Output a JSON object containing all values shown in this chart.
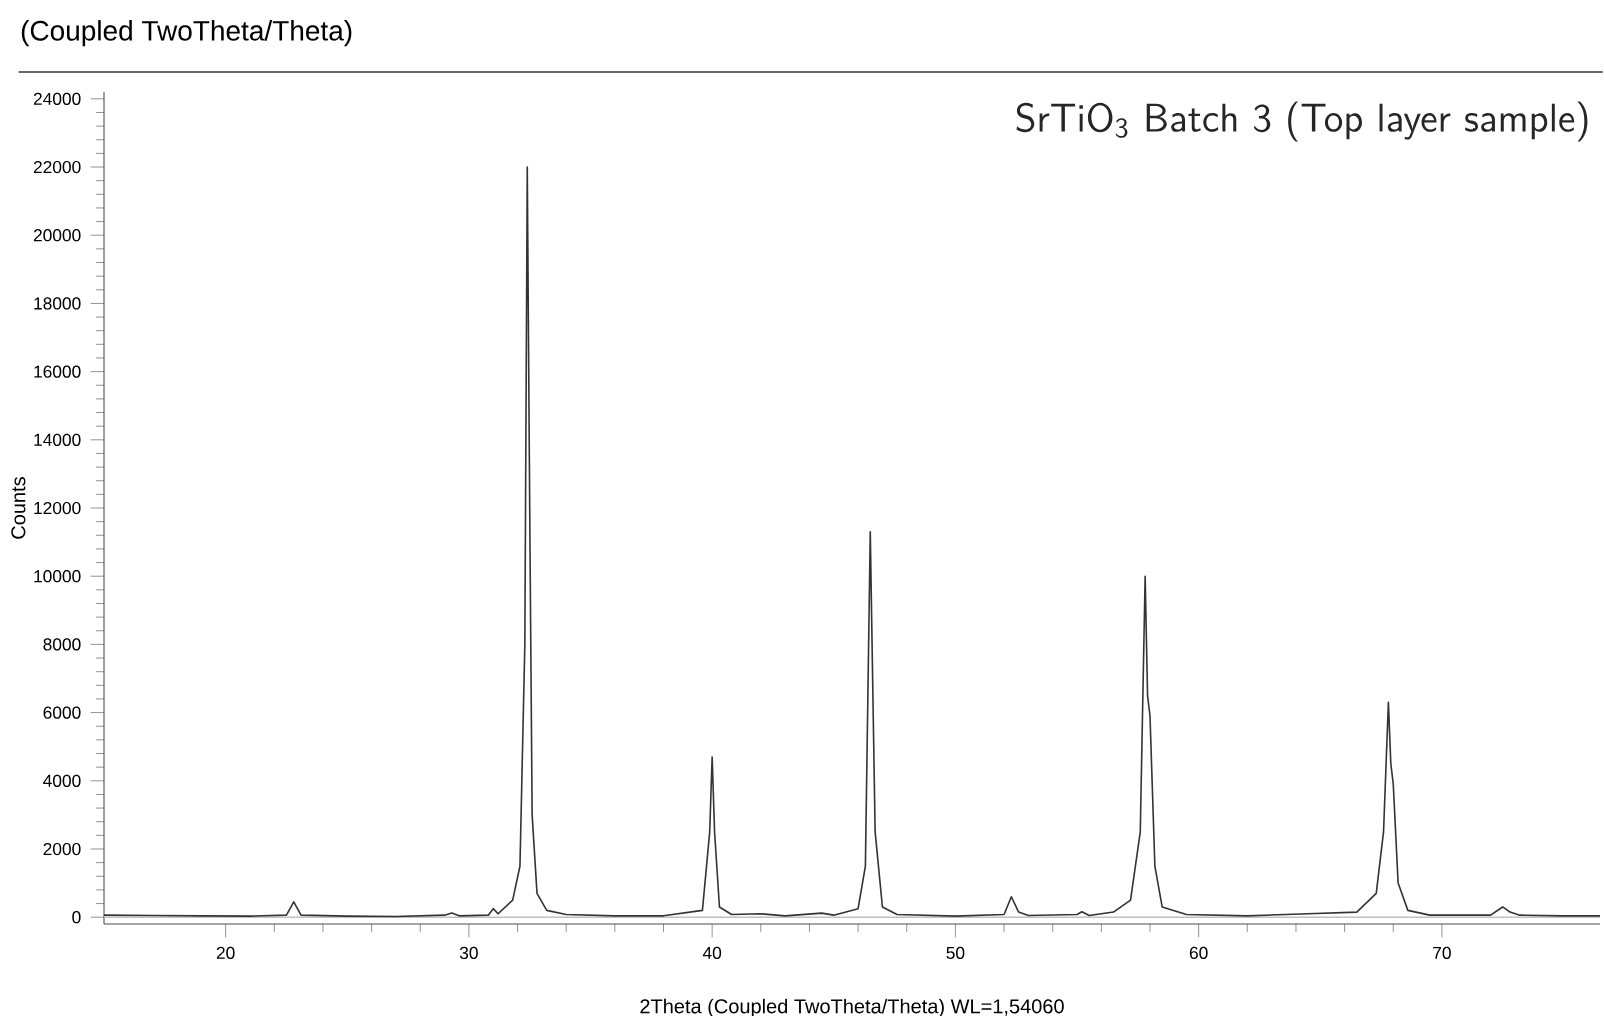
{
  "chart_data": {
    "type": "line",
    "title": "(Coupled TwoTheta/Theta)",
    "xlabel": "2Theta (Coupled TwoTheta/Theta) WL=1,54060",
    "ylabel": "Counts",
    "annotations": [
      "SrTiO$_{3}$ Batch 3 (Top layer sample)"
    ],
    "x": [
      15,
      17,
      19,
      21,
      22.5,
      22.8,
      23.1,
      25,
      27,
      29,
      29.3,
      29.6,
      30.8,
      31.0,
      31.2,
      31.8,
      32.1,
      32.3,
      32.4,
      32.5,
      32.6,
      32.8,
      33.2,
      34,
      36,
      38,
      39.6,
      39.9,
      40.0,
      40.1,
      40.3,
      40.8,
      42,
      43,
      44.5,
      45,
      46.0,
      46.3,
      46.5,
      46.7,
      47.0,
      47.6,
      50,
      52.0,
      52.3,
      52.6,
      53,
      55,
      55.2,
      55.5,
      56.5,
      57.2,
      57.6,
      57.8,
      57.9,
      58.0,
      58.2,
      58.5,
      59.5,
      62,
      64.5,
      66.5,
      67.3,
      67.6,
      67.8,
      67.9,
      68.0,
      68.2,
      68.6,
      69.5,
      72,
      72.5,
      72.8,
      73.2,
      75,
      76.5
    ],
    "series": [
      {
        "color": "#333333",
        "values": [
          60,
          50,
          40,
          30,
          60,
          450,
          60,
          30,
          20,
          60,
          120,
          40,
          60,
          250,
          100,
          500,
          1500,
          8000,
          22000,
          12000,
          3000,
          700,
          200,
          80,
          40,
          40,
          200,
          2500,
          4700,
          2500,
          300,
          80,
          100,
          40,
          120,
          60,
          250,
          1500,
          11300,
          2500,
          300,
          80,
          30,
          80,
          600,
          150,
          50,
          80,
          160,
          50,
          150,
          500,
          2500,
          10000,
          6500,
          5900,
          1500,
          300,
          80,
          40,
          100,
          150,
          700,
          2500,
          6300,
          4500,
          3900,
          1000,
          200,
          60,
          60,
          300,
          150,
          60,
          40,
          40
        ]
      }
    ],
    "xlim": [
      15,
      76.5
    ],
    "ylim": [
      -200,
      24200
    ],
    "xticks": [
      20,
      30,
      40,
      50,
      60,
      70
    ],
    "yticks": [
      0,
      2000,
      4000,
      6000,
      8000,
      10000,
      12000,
      14000,
      16000,
      18000,
      20000,
      22000,
      24000
    ],
    "ref_lines": [
      {
        "axis": "y",
        "value": 0,
        "color": "#c0c0c0"
      }
    ]
  }
}
